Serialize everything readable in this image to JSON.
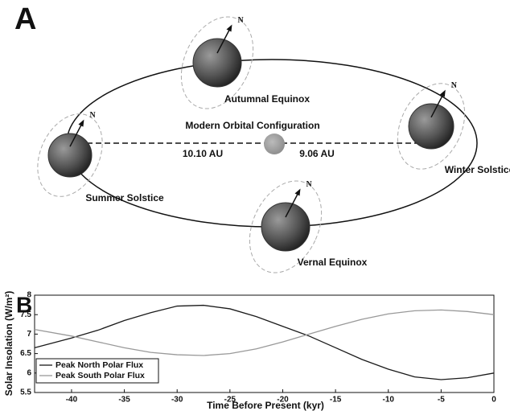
{
  "diagram": {
    "panel_label": "A",
    "title": "Modern Orbital Configuration",
    "distances": [
      "10.10 AU",
      "9.06 AU"
    ],
    "planets": [
      {
        "label": "Autumnal Equinox",
        "pole": "N"
      },
      {
        "label": "Winter Solstice",
        "pole": "N"
      },
      {
        "label": "Summer Solstice",
        "pole": "N"
      },
      {
        "label": "Vernal Equinox",
        "pole": "N"
      }
    ]
  },
  "chart_data": {
    "type": "line",
    "panel_label": "B",
    "x_label": "Time Before Present (kyr)",
    "y_label": "Solar Insolation (W/m²)",
    "x": [
      -43.5,
      -40,
      -37.5,
      -35,
      -32.5,
      -30,
      -27.5,
      -25,
      -22.5,
      -20,
      -17.5,
      -15,
      -12.5,
      -10,
      -7.5,
      -5,
      -2.5,
      0
    ],
    "series": [
      {
        "name": "Peak North Polar Flux",
        "color": "#1a1a1a",
        "values": [
          6.65,
          6.9,
          7.1,
          7.35,
          7.55,
          7.72,
          7.74,
          7.65,
          7.45,
          7.2,
          6.95,
          6.65,
          6.35,
          6.1,
          5.9,
          5.83,
          5.88,
          6.0
        ]
      },
      {
        "name": "Peak South Polar Flux",
        "color": "#999999",
        "values": [
          7.12,
          6.95,
          6.8,
          6.65,
          6.53,
          6.47,
          6.45,
          6.5,
          6.62,
          6.8,
          7.0,
          7.2,
          7.38,
          7.52,
          7.6,
          7.62,
          7.58,
          7.5
        ]
      }
    ],
    "xlim": [
      -43.5,
      0
    ],
    "xticks": [
      -40,
      -35,
      -30,
      -25,
      -20,
      -15,
      -10,
      -5,
      0
    ],
    "ylim": [
      5.5,
      8
    ],
    "yticks": [
      5.5,
      6,
      6.5,
      7,
      7.5,
      8
    ],
    "legend": "lower left"
  }
}
